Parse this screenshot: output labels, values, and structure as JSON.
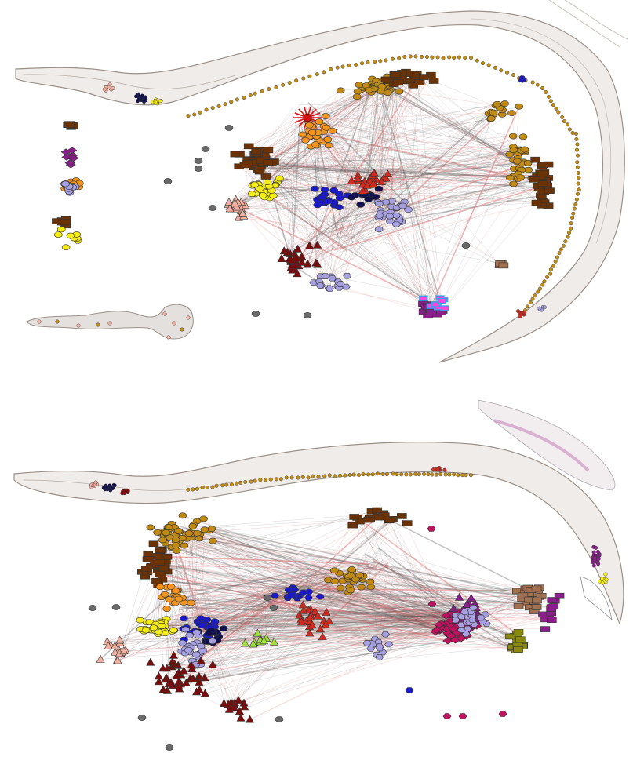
{
  "figure": {
    "panels": [
      {
        "id": "top",
        "label": ""
      },
      {
        "id": "bottom",
        "label": ""
      }
    ]
  },
  "palette": {
    "body_fill": "#efecea",
    "body_stroke": "#9c9189",
    "edge_gray": "#555555",
    "edge_red": "#e06060",
    "gold": "#c08a14",
    "brown": "#6b3206",
    "orange": "#f2941e",
    "yellow": "#f5ec14",
    "blue": "#1a1acc",
    "navy": "#101050",
    "lavender": "#a6a0e0",
    "red": "#d42a1e",
    "darkred": "#7a0c0c",
    "salmon": "#f2b0a0",
    "magenta": "#ff44dd",
    "purple": "#8a1e8a",
    "crimson": "#c41060",
    "olive": "#8a8a10",
    "tan": "#a07050",
    "gray": "#6a6a6a",
    "lime": "#a0e040"
  }
}
